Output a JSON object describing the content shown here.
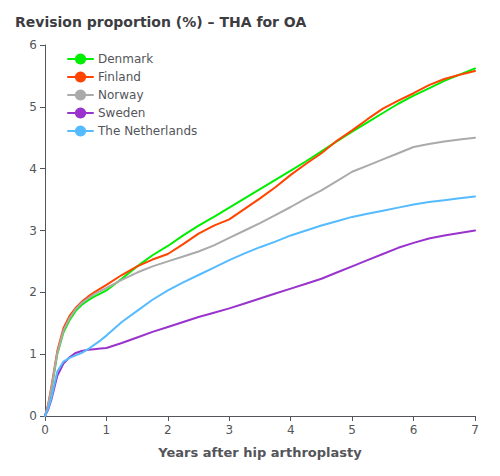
{
  "chart_data": {
    "type": "line",
    "title": "Revision proportion (%) – THA for OA",
    "xlabel": "Years after hip arthroplasty",
    "xlim": [
      0,
      7
    ],
    "ylim": [
      0,
      6
    ],
    "xticks": [
      0,
      1,
      2,
      3,
      4,
      5,
      6,
      7
    ],
    "yticks": [
      0,
      1,
      2,
      3,
      4,
      5,
      6
    ],
    "grid": false,
    "legend": "upper left",
    "x": [
      0,
      0.05,
      0.1,
      0.15,
      0.2,
      0.3,
      0.4,
      0.5,
      0.6,
      0.7,
      0.8,
      0.9,
      1.0,
      1.25,
      1.5,
      1.75,
      2.0,
      2.25,
      2.5,
      2.75,
      3.0,
      3.25,
      3.5,
      3.75,
      4.0,
      4.25,
      4.5,
      4.75,
      5.0,
      5.25,
      5.5,
      5.75,
      6.0,
      6.25,
      6.5,
      6.75,
      7.0
    ],
    "series": [
      {
        "name": "Denmark",
        "color": "#00EE00",
        "values": [
          0,
          0.15,
          0.4,
          0.7,
          1.0,
          1.35,
          1.55,
          1.7,
          1.8,
          1.87,
          1.93,
          1.98,
          2.03,
          2.22,
          2.42,
          2.6,
          2.75,
          2.92,
          3.08,
          3.22,
          3.37,
          3.52,
          3.67,
          3.82,
          3.97,
          4.12,
          4.28,
          4.44,
          4.6,
          4.75,
          4.9,
          5.05,
          5.18,
          5.3,
          5.42,
          5.52,
          5.62
        ]
      },
      {
        "name": "Finland",
        "color": "#FF4400",
        "values": [
          0,
          0.18,
          0.45,
          0.75,
          1.05,
          1.42,
          1.62,
          1.75,
          1.85,
          1.93,
          2.0,
          2.06,
          2.12,
          2.28,
          2.42,
          2.53,
          2.62,
          2.78,
          2.95,
          3.08,
          3.18,
          3.35,
          3.52,
          3.7,
          3.9,
          4.08,
          4.25,
          4.45,
          4.62,
          4.8,
          4.97,
          5.1,
          5.22,
          5.35,
          5.45,
          5.52,
          5.58
        ]
      },
      {
        "name": "Norway",
        "color": "#AAAAAA",
        "values": [
          0,
          0.17,
          0.42,
          0.72,
          1.02,
          1.38,
          1.58,
          1.73,
          1.83,
          1.9,
          1.97,
          2.02,
          2.07,
          2.2,
          2.32,
          2.42,
          2.5,
          2.58,
          2.66,
          2.76,
          2.88,
          3.0,
          3.12,
          3.25,
          3.38,
          3.52,
          3.65,
          3.8,
          3.95,
          4.05,
          4.15,
          4.25,
          4.35,
          4.4,
          4.44,
          4.47,
          4.5
        ]
      },
      {
        "name": "Sweden",
        "color": "#9933CC",
        "values": [
          0,
          0.1,
          0.25,
          0.45,
          0.65,
          0.85,
          0.95,
          1.02,
          1.05,
          1.07,
          1.08,
          1.09,
          1.1,
          1.18,
          1.27,
          1.36,
          1.44,
          1.52,
          1.6,
          1.67,
          1.74,
          1.82,
          1.9,
          1.98,
          2.06,
          2.14,
          2.22,
          2.32,
          2.42,
          2.52,
          2.62,
          2.72,
          2.8,
          2.87,
          2.92,
          2.96,
          3.0
        ]
      },
      {
        "name": "The Netherlands",
        "color": "#55BBFF",
        "values": [
          0,
          0.12,
          0.28,
          0.5,
          0.72,
          0.88,
          0.94,
          0.98,
          1.02,
          1.08,
          1.15,
          1.22,
          1.3,
          1.52,
          1.7,
          1.88,
          2.03,
          2.16,
          2.28,
          2.4,
          2.52,
          2.63,
          2.73,
          2.82,
          2.92,
          3.0,
          3.08,
          3.15,
          3.22,
          3.27,
          3.32,
          3.37,
          3.42,
          3.46,
          3.49,
          3.52,
          3.55
        ]
      }
    ]
  }
}
